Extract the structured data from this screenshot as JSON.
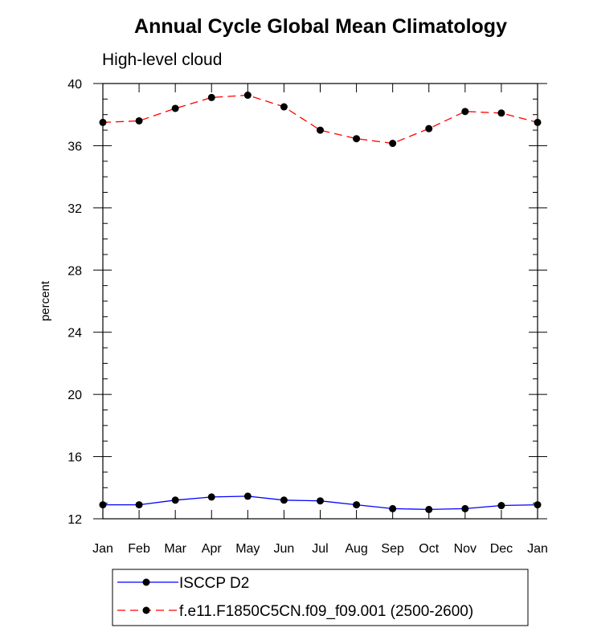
{
  "chart_data": {
    "type": "line",
    "title": "Annual Cycle Global Mean Climatology",
    "subtitle": "High-level cloud",
    "xlabel": "",
    "ylabel": "percent",
    "categories": [
      "Jan",
      "Feb",
      "Mar",
      "Apr",
      "May",
      "Jun",
      "Jul",
      "Aug",
      "Sep",
      "Oct",
      "Nov",
      "Dec",
      "Jan"
    ],
    "ylim": [
      12,
      40
    ],
    "yticks": [
      12,
      16,
      20,
      24,
      28,
      32,
      36,
      40
    ],
    "grid": false,
    "legend_position": "bottom",
    "series": [
      {
        "name": "ISCCP D2",
        "color": "#0000ff",
        "line_style": "solid",
        "marker": "filled-circle",
        "values": [
          12.9,
          12.9,
          13.2,
          13.4,
          13.45,
          13.2,
          13.15,
          12.9,
          12.65,
          12.6,
          12.65,
          12.85,
          12.9
        ]
      },
      {
        "name": "f.e11.F1850C5CN.f09_f09.001 (2500-2600)",
        "color": "#ff0000",
        "line_style": "dashed",
        "marker": "filled-circle",
        "values": [
          37.5,
          37.6,
          38.4,
          39.1,
          39.25,
          38.5,
          37.0,
          36.45,
          36.15,
          37.1,
          38.2,
          38.1,
          37.5
        ]
      }
    ]
  }
}
